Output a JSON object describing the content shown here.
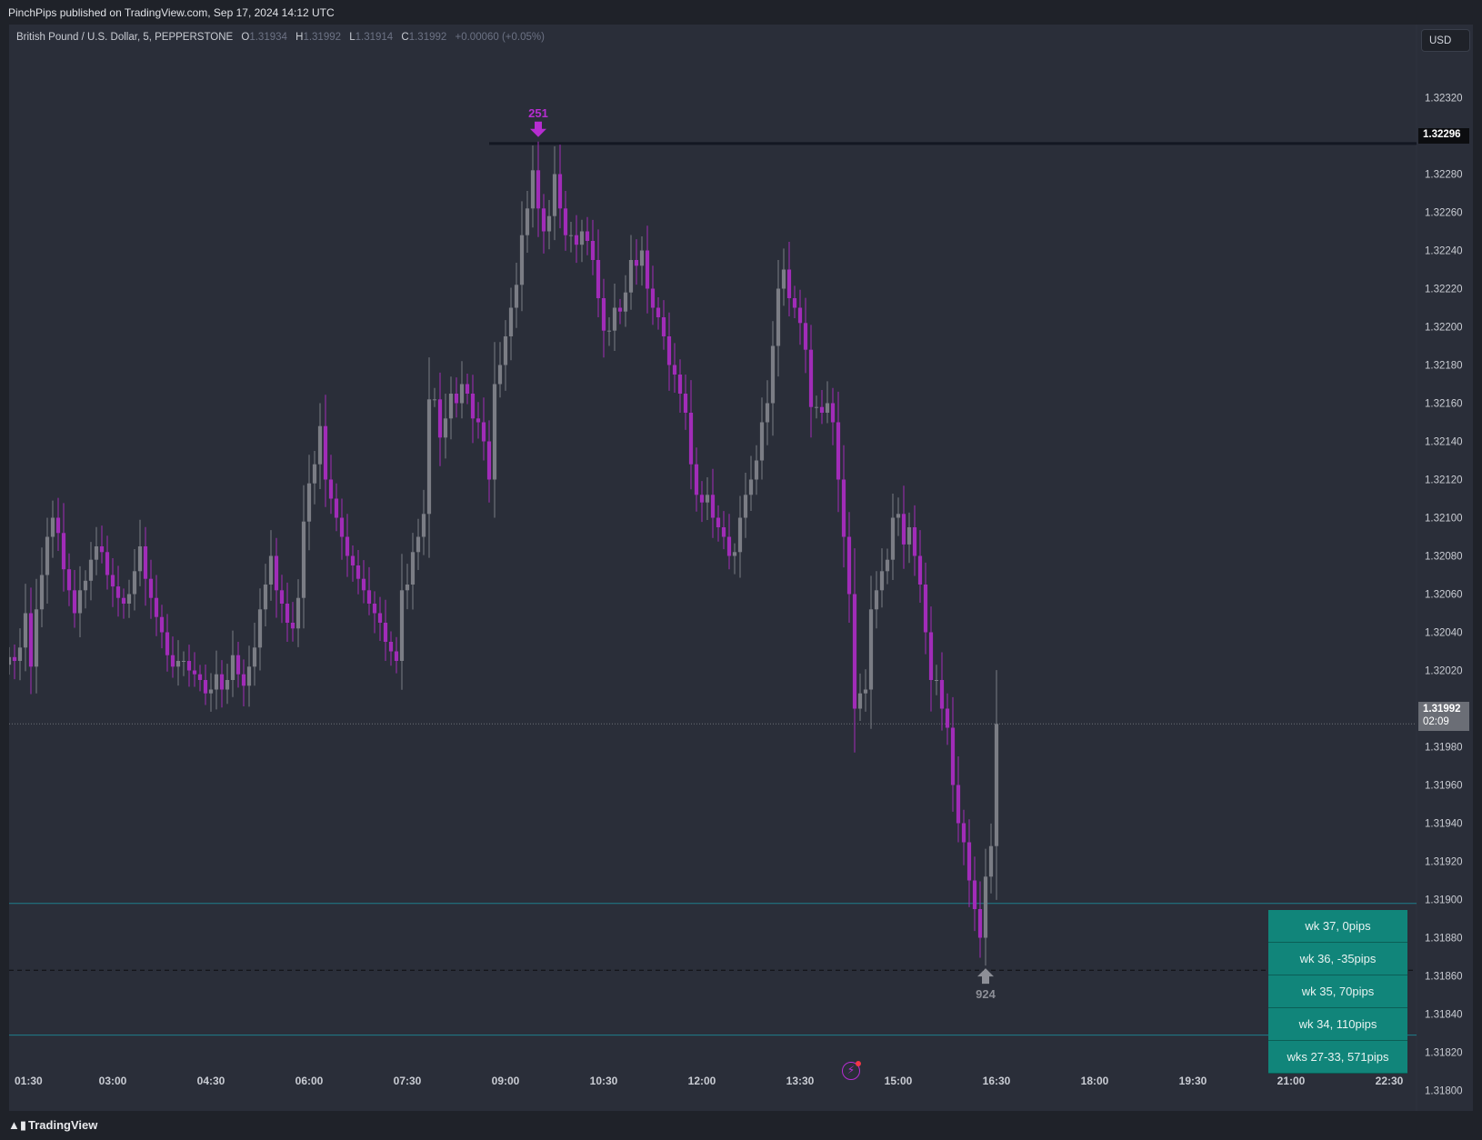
{
  "header": {
    "publisher_line": "PinchPips published on TradingView.com, Sep 17, 2024 14:12 UTC"
  },
  "legend": {
    "symbol": "British Pound / U.S. Dollar, 5, PEPPERSTONE",
    "o_label": "O",
    "o": "1.31934",
    "h_label": "H",
    "h": "1.31992",
    "l_label": "L",
    "l": "1.31914",
    "c_label": "C",
    "c": "1.31992",
    "change": "+0.00060 (+0.05%)"
  },
  "currency_button": "USD",
  "colors": {
    "bull": "#7b7d85",
    "bear": "#a12cb8",
    "background": "#2a2e39",
    "teal_line": "#1e7f8c",
    "week_box": "#11857a",
    "high_marker": "#b62dd1",
    "low_marker": "#8d8f97"
  },
  "price_labels": {
    "high_line": "1.32296",
    "last_price": "1.31992",
    "countdown": "02:09"
  },
  "markers": {
    "high_label": "251",
    "low_label": "924"
  },
  "week_stats": [
    "wk 37, 0pips",
    "wk 36, -35pips",
    "wk 35, 70pips",
    "wk 34, 110pips",
    "wks 27-33, 571pips"
  ],
  "footer": {
    "logo_text": "TradingView",
    "logo_icon": "tradingview-logo-icon"
  },
  "indicator_icon": "lightning-bolt-icon",
  "chart_data": {
    "type": "candlestick",
    "title": "British Pound / U.S. Dollar, 5, PEPPERSTONE",
    "interval_minutes": 5,
    "first_bar_time": "01:25",
    "ylim": [
      1.31795,
      1.32345
    ],
    "y_ticks": [
      "1.32320",
      "1.32300",
      "1.32280",
      "1.32260",
      "1.32240",
      "1.32220",
      "1.32200",
      "1.32180",
      "1.32160",
      "1.32140",
      "1.32120",
      "1.32100",
      "1.32080",
      "1.32060",
      "1.32040",
      "1.32020",
      "1.32000",
      "1.31980",
      "1.31960",
      "1.31940",
      "1.31920",
      "1.31900",
      "1.31880",
      "1.31860",
      "1.31840",
      "1.31820",
      "1.31800"
    ],
    "x_ticks": [
      "01:30",
      "03:00",
      "04:30",
      "06:00",
      "07:30",
      "09:00",
      "10:30",
      "12:00",
      "13:30",
      "15:00",
      "16:30",
      "18:00",
      "19:30",
      "21:00",
      "22:30"
    ],
    "x_range": [
      "01:25",
      "22:55"
    ],
    "horizontal_lines": [
      {
        "price": 1.32296,
        "style": "solid",
        "color": "#131722",
        "from_time": "08:45"
      },
      {
        "price": 1.31898,
        "style": "solid",
        "color": "#1e7f8c"
      },
      {
        "price": 1.31863,
        "style": "dashed",
        "color": "#0c0d10"
      },
      {
        "price": 1.31829,
        "style": "solid",
        "color": "#1e7f8c"
      },
      {
        "price": 1.31992,
        "style": "dotted",
        "color": "#6b6e76"
      }
    ],
    "closes": [
      1.32027,
      1.32025,
      1.32032,
      1.3205,
      1.32022,
      1.32052,
      1.3207,
      1.3209,
      1.321,
      1.32092,
      1.32073,
      1.32062,
      1.3205,
      1.32062,
      1.32067,
      1.32078,
      1.32085,
      1.32082,
      1.3207,
      1.32064,
      1.32058,
      1.32055,
      1.3206,
      1.32072,
      1.32085,
      1.32068,
      1.32058,
      1.32048,
      1.3204,
      1.32028,
      1.32022,
      1.32025,
      1.32025,
      1.3202,
      1.32018,
      1.32015,
      1.32008,
      1.3201,
      1.32018,
      1.3201,
      1.32015,
      1.32028,
      1.32018,
      1.32012,
      1.32022,
      1.32032,
      1.32052,
      1.32065,
      1.3208,
      1.32062,
      1.32055,
      1.32045,
      1.32042,
      1.32058,
      1.32098,
      1.32118,
      1.32128,
      1.32148,
      1.3212,
      1.3211,
      1.321,
      1.3209,
      1.3208,
      1.32075,
      1.32068,
      1.32062,
      1.32055,
      1.3205,
      1.32045,
      1.32035,
      1.3203,
      1.32025,
      1.32062,
      1.32065,
      1.32082,
      1.3209,
      1.32102,
      1.32162,
      1.32162,
      1.32142,
      1.32152,
      1.32165,
      1.3216,
      1.3217,
      1.32165,
      1.32152,
      1.3215,
      1.3214,
      1.3212,
      1.3217,
      1.3218,
      1.32195,
      1.3221,
      1.32222,
      1.32248,
      1.32262,
      1.32282,
      1.32262,
      1.3225,
      1.32258,
      1.3228,
      1.32262,
      1.32248,
      1.32248,
      1.32243,
      1.3225,
      1.32245,
      1.32235,
      1.32215,
      1.32198,
      1.32198,
      1.3221,
      1.32208,
      1.32218,
      1.32235,
      1.32232,
      1.3224,
      1.3222,
      1.3221,
      1.32205,
      1.32195,
      1.3218,
      1.32175,
      1.32165,
      1.32155,
      1.32128,
      1.32112,
      1.32108,
      1.32112,
      1.321,
      1.32095,
      1.3209,
      1.3208,
      1.32082,
      1.321,
      1.32112,
      1.3212,
      1.3213,
      1.3215,
      1.3216,
      1.3219,
      1.3222,
      1.3223,
      1.32215,
      1.3221,
      1.32202,
      1.32188,
      1.32158,
      1.32158,
      1.32155,
      1.3216,
      1.3215,
      1.3212,
      1.3209,
      1.3206,
      1.32,
      1.32008,
      1.3201,
      1.32052,
      1.32062,
      1.32072,
      1.32078,
      1.321,
      1.32102,
      1.32086,
      1.32095,
      1.3208,
      1.32065,
      1.3204,
      1.32015,
      1.32015,
      1.32,
      1.3199,
      1.3196,
      1.3194,
      1.3193,
      1.3191,
      1.31895,
      1.3188,
      1.31912,
      1.31928,
      1.31992
    ]
  }
}
